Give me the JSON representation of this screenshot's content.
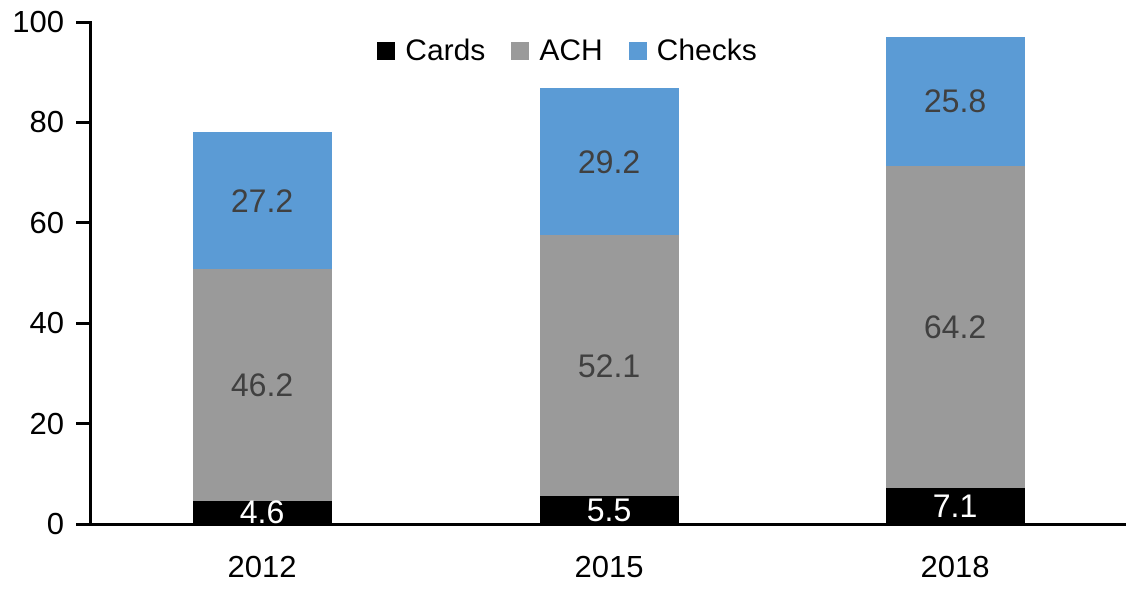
{
  "chart_data": {
    "type": "bar",
    "stacked": true,
    "title": "",
    "xlabel": "",
    "ylabel": "",
    "categories": [
      "2012",
      "2015",
      "2018"
    ],
    "series": [
      {
        "name": "Cards",
        "color": "#000000",
        "label_color": "#FFFFFF",
        "values": [
          4.6,
          5.5,
          7.1
        ]
      },
      {
        "name": "ACH",
        "color": "#9A9A9A",
        "label_color": "#404040",
        "values": [
          46.2,
          52.1,
          64.2
        ]
      },
      {
        "name": "Checks",
        "color": "#5B9BD5",
        "label_color": "#404040",
        "values": [
          27.2,
          29.2,
          25.8
        ]
      }
    ],
    "ylim": [
      0,
      100
    ],
    "yticks": [
      0,
      20,
      40,
      60,
      80,
      100
    ],
    "grid": false,
    "data_labels": true,
    "legend_position": "top-center"
  },
  "colors": {
    "background": "#FFFFFF",
    "axis": "#000000",
    "tick_text": "#000000"
  }
}
